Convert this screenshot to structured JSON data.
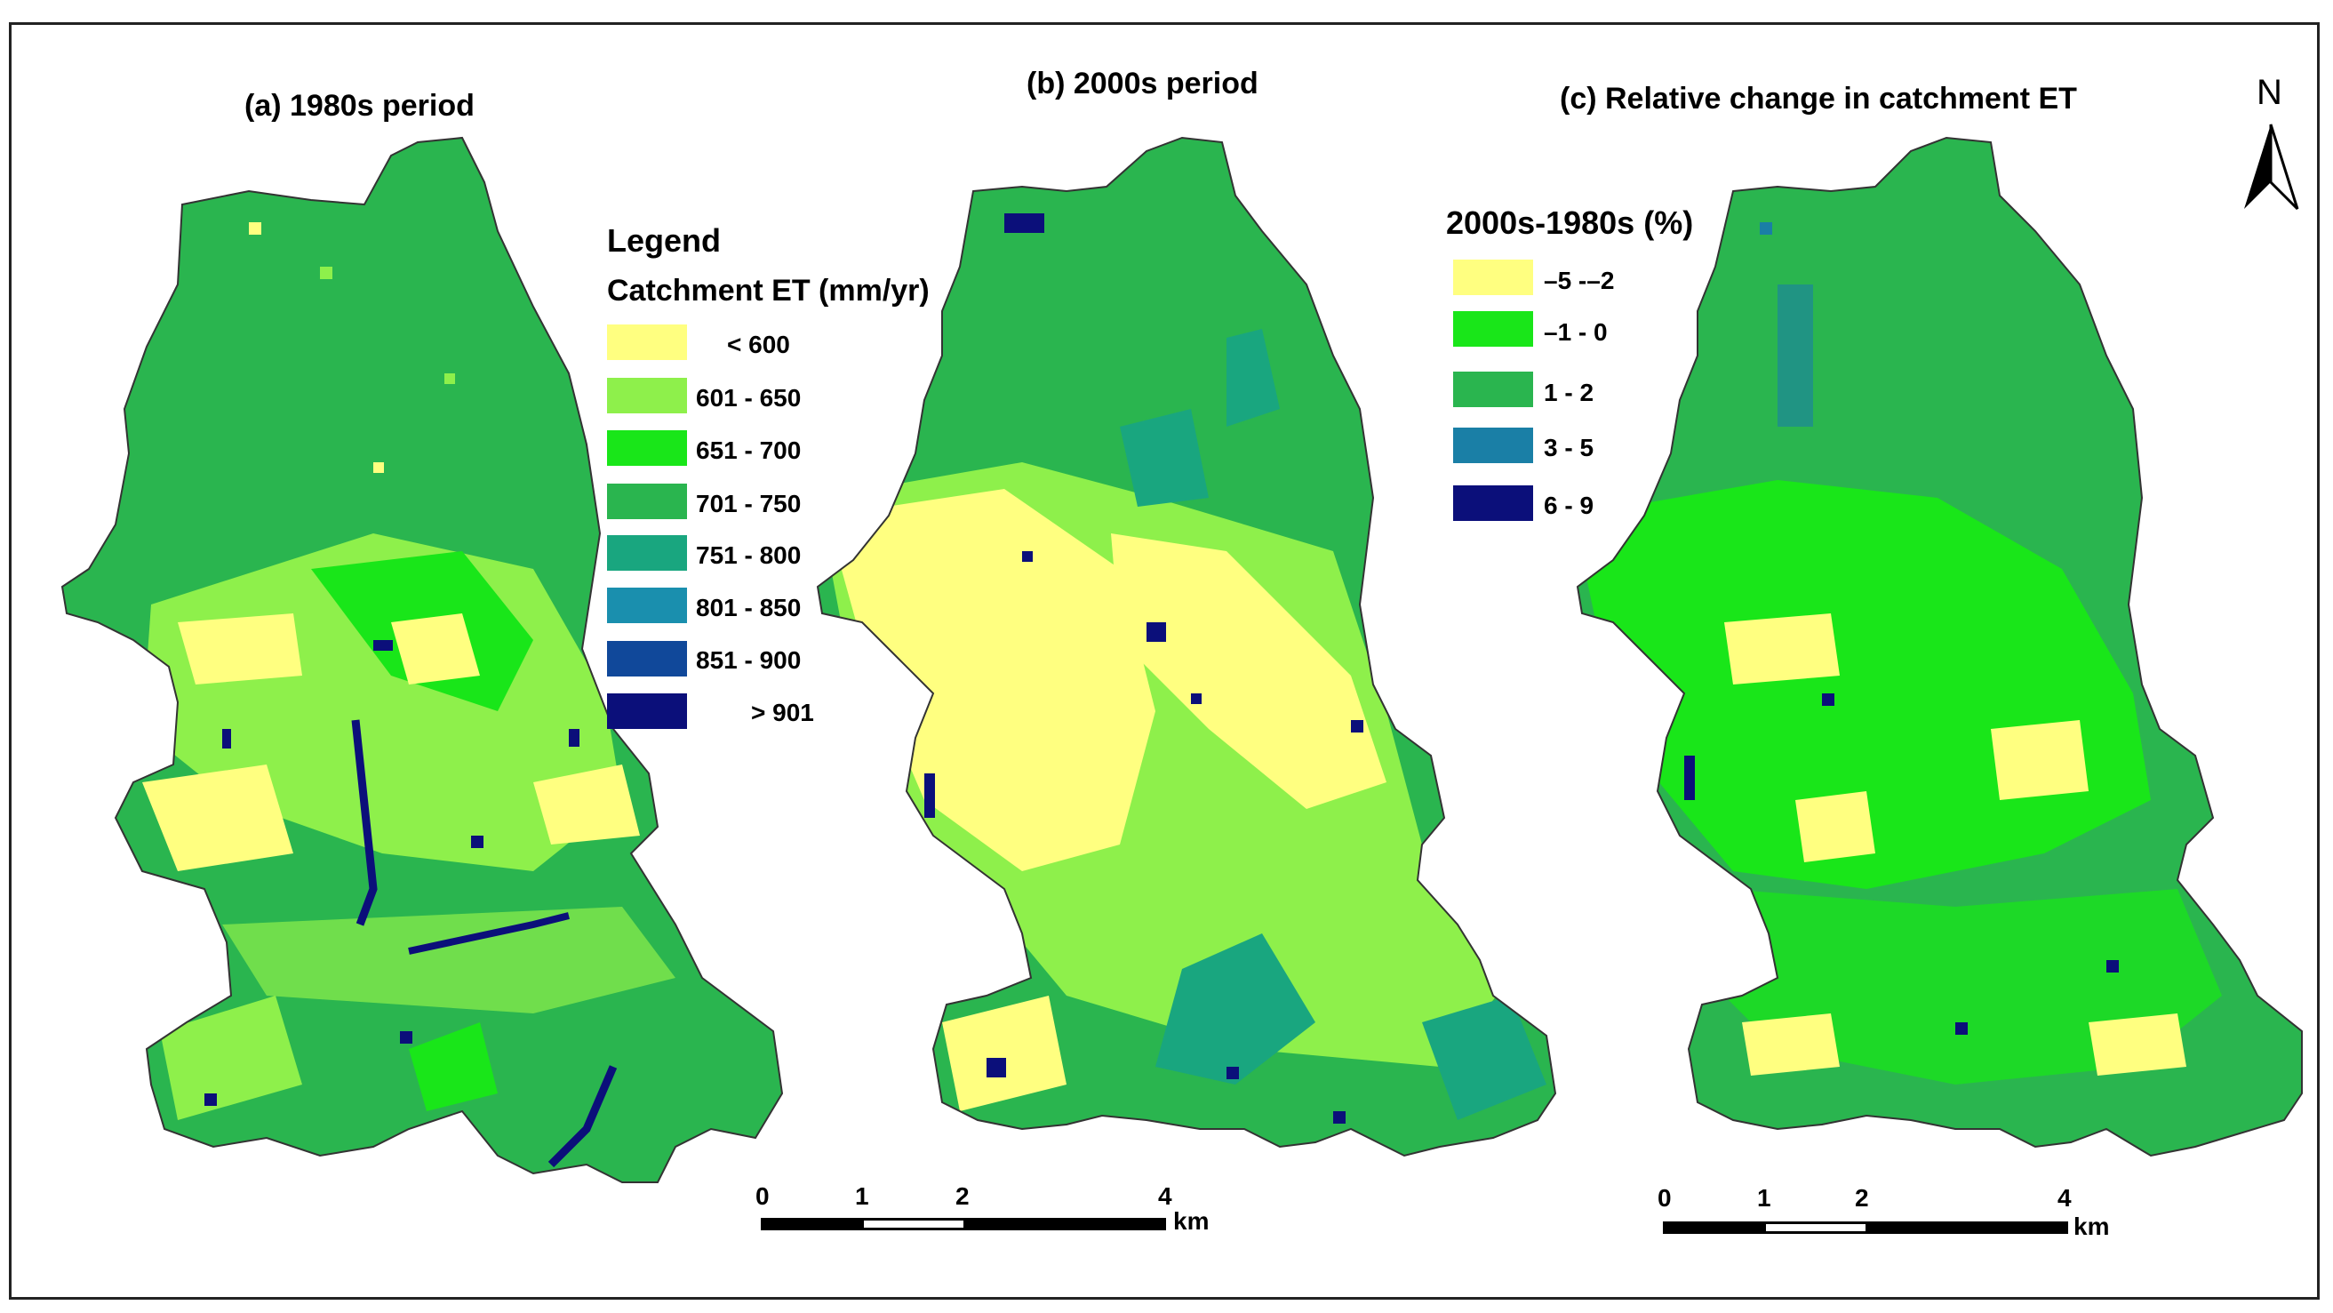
{
  "panels": [
    {
      "title": "(a) 1980s period"
    },
    {
      "title": "(b) 2000s period"
    },
    {
      "title": "(c) Relative change in catchment ET"
    }
  ],
  "north_label": "N",
  "legend_et": {
    "heading": "Legend",
    "subheading": "Catchment ET (mm/yr)",
    "classes": [
      {
        "label": "< 600",
        "color": "#ffff80"
      },
      {
        "label": "601 - 650",
        "color": "#8ef04b"
      },
      {
        "label": "651 - 700",
        "color": "#19e619"
      },
      {
        "label": "701 - 750",
        "color": "#2ab54f"
      },
      {
        "label": "751 - 800",
        "color": "#19a67f"
      },
      {
        "label": "801 - 850",
        "color": "#1a8fae"
      },
      {
        "label": "851 - 900",
        "color": "#10489a"
      },
      {
        "label": "> 901",
        "color": "#0b0f7a"
      }
    ]
  },
  "legend_change": {
    "heading": "2000s-1980s (%)",
    "classes": [
      {
        "label": "–5 -–2",
        "color": "#ffff80"
      },
      {
        "label": "–1 - 0",
        "color": "#19e619"
      },
      {
        "label": "1 - 2",
        "color": "#2ab54f"
      },
      {
        "label": "3 - 5",
        "color": "#1a7fa6"
      },
      {
        "label": "6 - 9",
        "color": "#0b0f7a"
      }
    ]
  },
  "scalebars": [
    {
      "ticks": [
        "0",
        "1",
        "2",
        "4"
      ],
      "unit": "km"
    },
    {
      "ticks": [
        "0",
        "1",
        "2",
        "4"
      ],
      "unit": "km"
    }
  ]
}
